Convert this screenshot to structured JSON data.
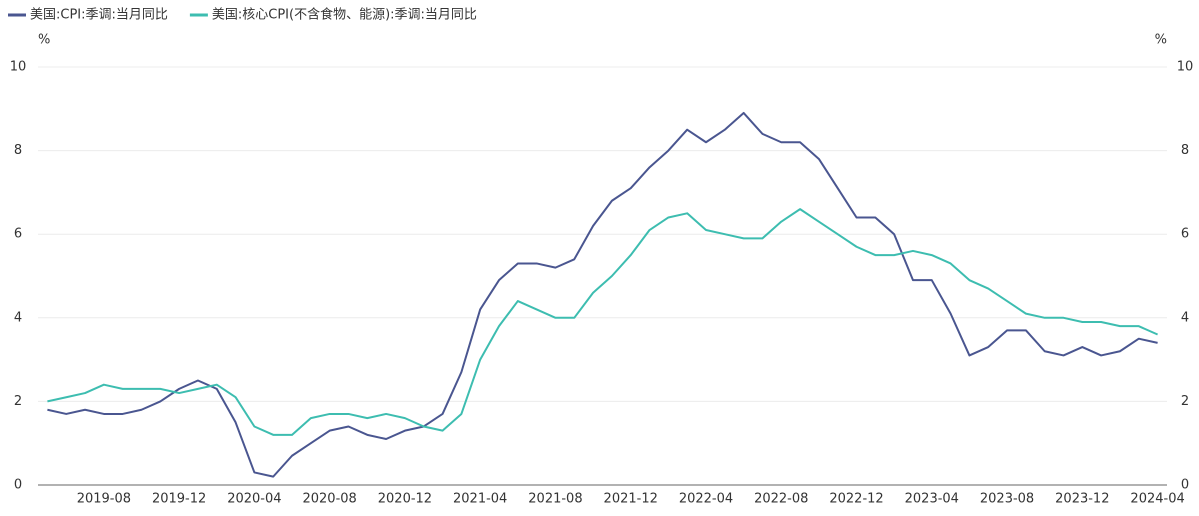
{
  "chart_data": {
    "type": "line",
    "y_label": "%",
    "y2_label": "%",
    "categories": [
      null,
      null,
      null,
      "2019-08",
      null,
      null,
      null,
      "2019-12",
      null,
      null,
      null,
      "2020-04",
      null,
      null,
      null,
      "2020-08",
      null,
      null,
      null,
      "2020-12",
      null,
      null,
      null,
      "2021-04",
      null,
      null,
      null,
      "2021-08",
      null,
      null,
      null,
      "2021-12",
      null,
      null,
      null,
      "2022-04",
      null,
      null,
      null,
      "2022-08",
      null,
      null,
      null,
      "2022-12",
      null,
      null,
      null,
      "2023-04",
      null,
      null,
      null,
      "2023-08",
      null,
      null,
      null,
      "2023-12",
      null,
      null,
      null,
      "2024-04"
    ],
    "series": [
      {
        "name": "美国:CPI:季调:当月同比",
        "color": "#4a5690",
        "values": [
          1.8,
          1.7,
          1.8,
          1.7,
          1.7,
          1.8,
          2.0,
          2.3,
          2.5,
          2.3,
          1.5,
          0.3,
          0.2,
          0.7,
          1.0,
          1.3,
          1.4,
          1.2,
          1.1,
          1.3,
          1.4,
          1.7,
          2.7,
          4.2,
          4.9,
          5.3,
          5.3,
          5.2,
          5.4,
          6.2,
          6.8,
          7.1,
          7.6,
          8.0,
          8.5,
          8.2,
          8.5,
          8.9,
          8.4,
          8.2,
          8.2,
          7.8,
          7.1,
          6.4,
          6.4,
          6.0,
          4.9,
          4.9,
          4.1,
          3.1,
          3.3,
          3.7,
          3.7,
          3.2,
          3.1,
          3.3,
          3.1,
          3.2,
          3.5,
          3.4
        ]
      },
      {
        "name": "美国:核心CPI(不含食物、能源):季调:当月同比",
        "color": "#3dbdb0",
        "axis": "y2",
        "values": [
          2.0,
          2.1,
          2.2,
          2.4,
          2.3,
          2.3,
          2.3,
          2.2,
          2.3,
          2.4,
          2.1,
          1.4,
          1.2,
          1.2,
          1.6,
          1.7,
          1.7,
          1.6,
          1.7,
          1.6,
          1.4,
          1.3,
          1.7,
          3.0,
          3.8,
          4.4,
          4.2,
          4.0,
          4.0,
          4.6,
          5.0,
          5.5,
          6.1,
          6.4,
          6.5,
          6.1,
          6.0,
          5.9,
          5.9,
          6.3,
          6.6,
          6.3,
          6.0,
          5.7,
          5.5,
          5.5,
          5.6,
          5.5,
          5.3,
          4.9,
          4.7,
          4.4,
          4.1,
          4.0,
          4.0,
          3.9,
          3.9,
          3.8,
          3.8,
          3.6
        ]
      }
    ],
    "ylim": [
      0,
      10
    ],
    "yticks": [
      0,
      2,
      4,
      6,
      8,
      10
    ],
    "y2lim": [
      0,
      10
    ],
    "y2ticks": [
      0,
      2,
      4,
      6,
      8,
      10
    ],
    "grid": true,
    "legend": "top-left"
  }
}
